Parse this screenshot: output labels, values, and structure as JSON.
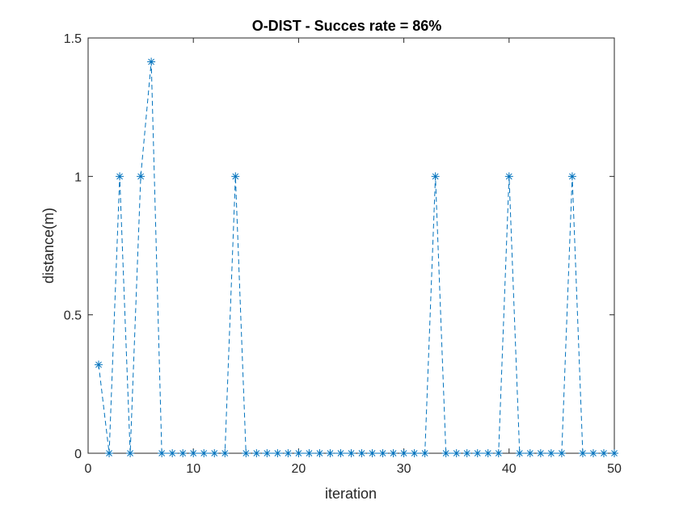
{
  "chart_data": {
    "type": "line",
    "title": "O-DIST - Succes rate = 86%",
    "xlabel": "iteration",
    "ylabel": "distance(m)",
    "xlim": [
      0,
      50
    ],
    "ylim": [
      0,
      1.5
    ],
    "xticks": [
      0,
      10,
      20,
      30,
      40,
      50
    ],
    "xtick_labels": [
      "0",
      "10",
      "20",
      "30",
      "40",
      "50"
    ],
    "yticks": [
      0,
      0.5,
      1,
      1.5
    ],
    "ytick_labels": [
      "0",
      "0.5",
      "1",
      "1.5"
    ],
    "grid": false,
    "series": [
      {
        "name": "distance",
        "line_style": "dashed",
        "marker": "asterisk",
        "color": "#0072BD",
        "x": [
          1,
          2,
          3,
          4,
          5,
          6,
          7,
          8,
          9,
          10,
          11,
          12,
          13,
          14,
          15,
          16,
          17,
          18,
          19,
          20,
          21,
          22,
          23,
          24,
          25,
          26,
          27,
          28,
          29,
          30,
          31,
          32,
          33,
          34,
          35,
          36,
          37,
          38,
          39,
          40,
          41,
          42,
          43,
          44,
          45,
          46,
          47,
          48,
          49,
          50
        ],
        "y": [
          0.32,
          0,
          1,
          0,
          1,
          1.414,
          0,
          0,
          0,
          0,
          0,
          0,
          0,
          1,
          0,
          0,
          0,
          0,
          0,
          0,
          0,
          0,
          0,
          0,
          0,
          0,
          0,
          0,
          0,
          0,
          0,
          0,
          1,
          0,
          0,
          0,
          0,
          0,
          0,
          1,
          0,
          0,
          0,
          0,
          0,
          1,
          0,
          0,
          0,
          0
        ]
      }
    ]
  },
  "colors": {
    "axis": "#262626",
    "series": "#0072BD",
    "background": "#ffffff"
  }
}
